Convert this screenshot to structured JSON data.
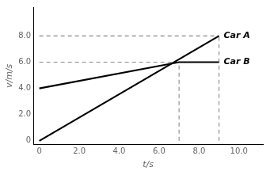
{
  "chart_data": {
    "type": "line",
    "title": "",
    "xlabel": "t/s",
    "ylabel": "v/m/s",
    "xlim": [
      -0.3,
      11.2
    ],
    "ylim": [
      -0.3,
      10.2
    ],
    "xticks": [
      0,
      {
        "value": 2.0,
        "label": "2.0"
      },
      {
        "value": 4.0,
        "label": "4.0"
      },
      {
        "value": 6.0,
        "label": "6.0"
      },
      {
        "value": 8.0,
        "label": "8.0"
      },
      {
        "value": 10.0,
        "label": "10.0"
      }
    ],
    "yticks": [
      0,
      {
        "value": 2.0,
        "label": "2.0"
      },
      {
        "value": 4.0,
        "label": "4.0"
      },
      {
        "value": 6.0,
        "label": "6.0"
      },
      {
        "value": 8.0,
        "label": "8.0"
      }
    ],
    "grid": false,
    "series": [
      {
        "name": "Car A",
        "x": [
          0,
          9
        ],
        "values": [
          0,
          8
        ],
        "color": "#000000",
        "line_style": "solid"
      },
      {
        "name": "Car B",
        "x": [
          0,
          7,
          9
        ],
        "values": [
          4,
          6,
          6
        ],
        "color": "#000000",
        "line_style": "solid"
      },
      {
        "x": [
          0,
          9
        ],
        "values": [
          6,
          6
        ],
        "color": "#888888",
        "line_style": "dashed"
      },
      {
        "x": [
          0,
          9
        ],
        "values": [
          8,
          8
        ],
        "color": "#888888",
        "line_style": "dashed"
      },
      {
        "x": [
          7,
          7
        ],
        "values": [
          0,
          6
        ],
        "color": "#888888",
        "line_style": "dashed"
      },
      {
        "x": [
          9,
          9
        ],
        "values": [
          0,
          8
        ],
        "color": "#888888",
        "line_style": "dashed"
      }
    ]
  }
}
